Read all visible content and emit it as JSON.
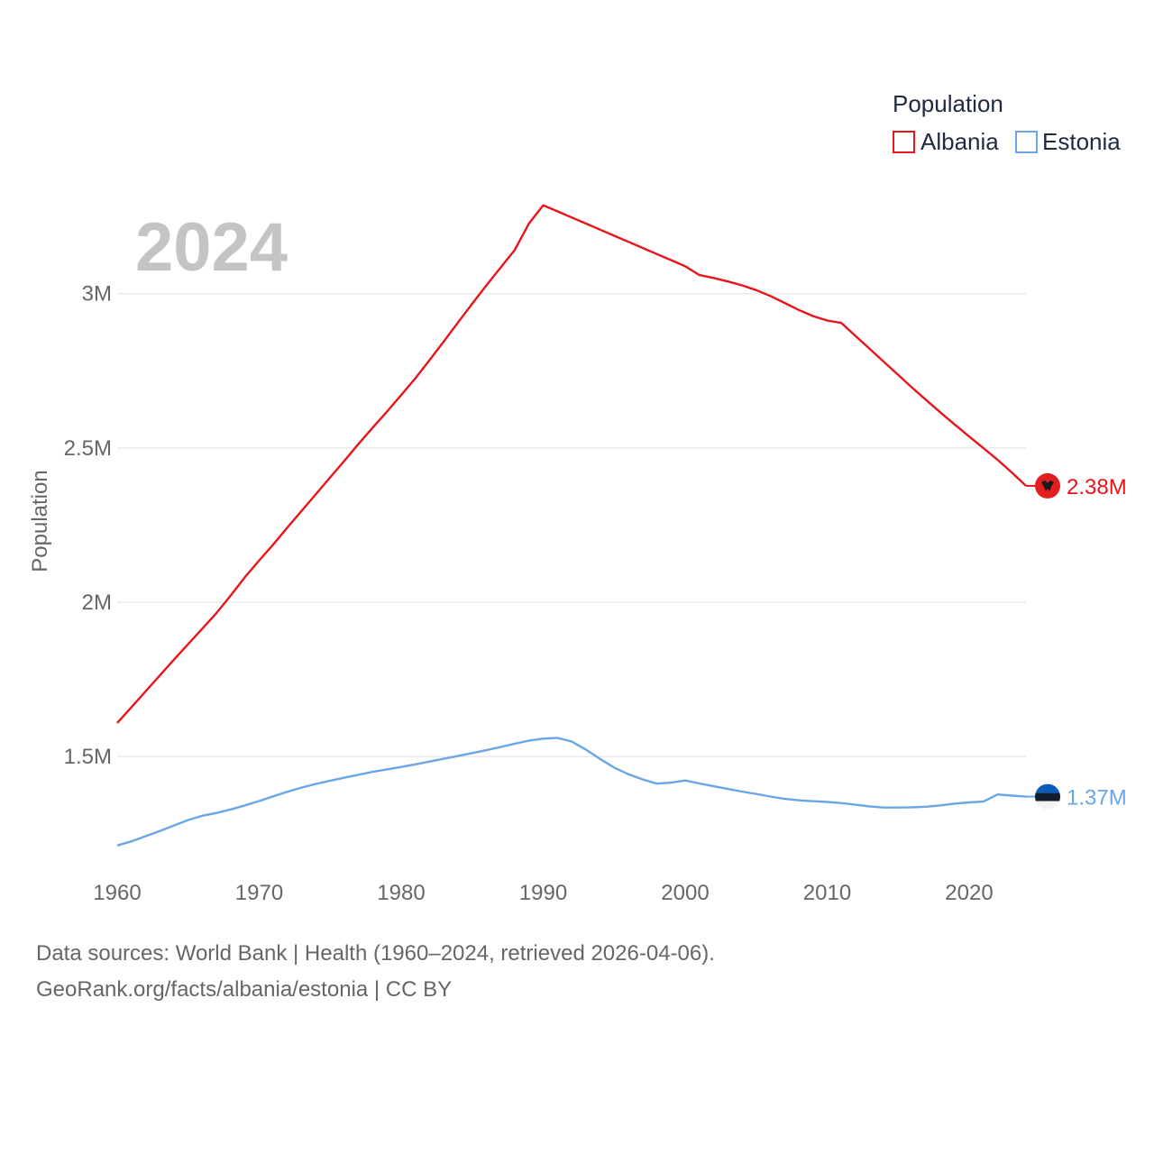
{
  "chart_data": {
    "type": "line",
    "title": "Population",
    "highlight_year": "2024",
    "ylabel": "Population",
    "xlabel": "",
    "xlim": [
      1960,
      2024
    ],
    "ylim": [
      1100000,
      3420000
    ],
    "x_ticks": [
      1960,
      1970,
      1980,
      1990,
      2000,
      2010,
      2020
    ],
    "x_tick_labels": [
      "1960",
      "1970",
      "1980",
      "1990",
      "2000",
      "2010",
      "2020"
    ],
    "y_ticks": [
      1500000,
      2000000,
      2500000,
      3000000
    ],
    "y_tick_labels": [
      "1.5M",
      "2M",
      "2.5M",
      "3M"
    ],
    "legend_title": "Population",
    "legend_position": "top-right",
    "series": [
      {
        "name": "Albania",
        "color": "#e8141c",
        "end_label": "2.38M",
        "flag_icon": "albania-flag-icon",
        "x": [
          1960,
          1961,
          1962,
          1963,
          1964,
          1965,
          1966,
          1967,
          1968,
          1969,
          1970,
          1971,
          1972,
          1973,
          1974,
          1975,
          1976,
          1977,
          1978,
          1979,
          1980,
          1981,
          1982,
          1983,
          1984,
          1985,
          1986,
          1987,
          1988,
          1989,
          1990,
          1991,
          1992,
          1993,
          1994,
          1995,
          1996,
          1997,
          1998,
          1999,
          2000,
          2001,
          2002,
          2003,
          2004,
          2005,
          2006,
          2007,
          2008,
          2009,
          2010,
          2011,
          2012,
          2013,
          2014,
          2015,
          2016,
          2017,
          2018,
          2019,
          2020,
          2021,
          2022,
          2023,
          2024
        ],
        "values": [
          1608800,
          1659800,
          1711300,
          1762600,
          1814100,
          1864800,
          1914600,
          1965600,
          2022300,
          2081700,
          2135500,
          2187900,
          2243100,
          2296800,
          2350700,
          2404800,
          2458500,
          2513500,
          2566300,
          2617800,
          2671300,
          2726000,
          2784700,
          2845400,
          2906600,
          2967500,
          3027100,
          3084700,
          3141700,
          3227900,
          3286500,
          3266800,
          3247000,
          3227300,
          3207600,
          3187700,
          3168000,
          3148300,
          3128500,
          3108800,
          3089000,
          3060200,
          3051000,
          3039600,
          3026900,
          3011500,
          2992500,
          2970000,
          2947300,
          2927500,
          2913000,
          2905200,
          2862700,
          2820600,
          2778500,
          2736500,
          2694900,
          2653900,
          2614000,
          2575100,
          2537100,
          2499400,
          2461500,
          2420300,
          2377100
        ]
      },
      {
        "name": "Estonia",
        "color": "#6aa6e6",
        "end_label": "1.37M",
        "flag_icon": "estonia-flag-icon",
        "x": [
          1960,
          1961,
          1962,
          1963,
          1964,
          1965,
          1966,
          1967,
          1968,
          1969,
          1970,
          1971,
          1972,
          1973,
          1974,
          1975,
          1976,
          1977,
          1978,
          1979,
          1980,
          1981,
          1982,
          1983,
          1984,
          1985,
          1986,
          1987,
          1988,
          1989,
          1990,
          1991,
          1992,
          1993,
          1994,
          1995,
          1996,
          1997,
          1998,
          1999,
          2000,
          2001,
          2002,
          2003,
          2004,
          2005,
          2006,
          2007,
          2008,
          2009,
          2010,
          2011,
          2012,
          2013,
          2014,
          2015,
          2016,
          2017,
          2018,
          2019,
          2020,
          2021,
          2022,
          2023,
          2024
        ],
        "values": [
          1211500,
          1225100,
          1241600,
          1258600,
          1276500,
          1294300,
          1307900,
          1317100,
          1328500,
          1341500,
          1355800,
          1371100,
          1386100,
          1399400,
          1411200,
          1421600,
          1431300,
          1441000,
          1450200,
          1458300,
          1466100,
          1474600,
          1483600,
          1492600,
          1501900,
          1511200,
          1520500,
          1530700,
          1541500,
          1551500,
          1558000,
          1560400,
          1548700,
          1522600,
          1492000,
          1464200,
          1442400,
          1425800,
          1412200,
          1415400,
          1422200,
          1412500,
          1403600,
          1394800,
          1386400,
          1378400,
          1370400,
          1362800,
          1357900,
          1355200,
          1352800,
          1348900,
          1343800,
          1338200,
          1334500,
          1334700,
          1335400,
          1337300,
          1341500,
          1347600,
          1351200,
          1353900,
          1377000,
          1373100,
          1370000
        ]
      }
    ]
  },
  "footer": {
    "line1": "Data sources: World Bank | Health (1960–2024, retrieved 2026-04-06).",
    "line2": "GeoRank.org/facts/albania/estonia | CC BY"
  }
}
